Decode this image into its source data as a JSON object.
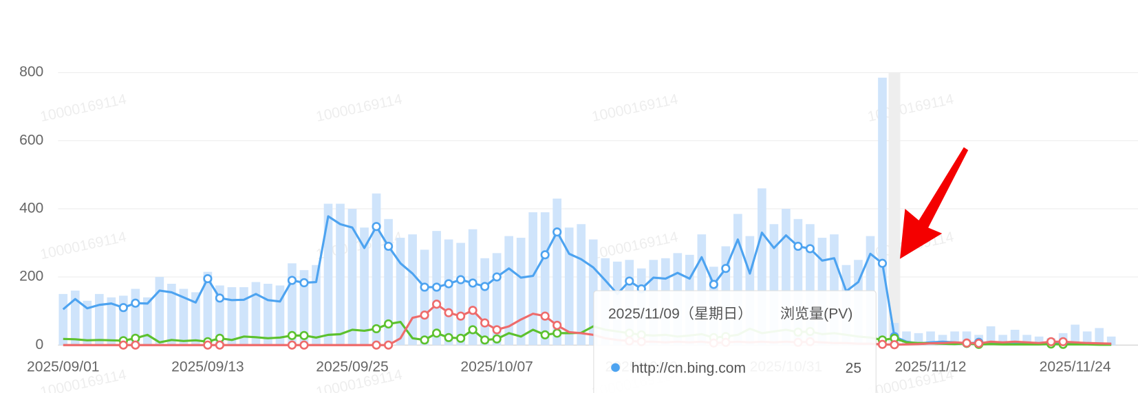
{
  "chart_data": {
    "type": "combo",
    "watermark": "10000169114",
    "categories": [
      "2025/09/01",
      null,
      null,
      null,
      null,
      null,
      null,
      null,
      null,
      null,
      null,
      null,
      "2025/09/13",
      null,
      null,
      null,
      null,
      null,
      null,
      null,
      null,
      null,
      null,
      null,
      "2025/09/25",
      null,
      null,
      null,
      null,
      null,
      null,
      null,
      null,
      null,
      null,
      null,
      "2025/10/07",
      null,
      null,
      null,
      null,
      null,
      null,
      null,
      null,
      null,
      null,
      null,
      "2025/10/19",
      null,
      null,
      null,
      null,
      null,
      null,
      null,
      null,
      null,
      null,
      null,
      "2025/10/31",
      null,
      null,
      null,
      null,
      null,
      null,
      null,
      null,
      null,
      null,
      null,
      "2025/11/12",
      null,
      null,
      null,
      null,
      null,
      null,
      null,
      null,
      null,
      null,
      null,
      "2025/11/24",
      null,
      null,
      null
    ],
    "ylim": [
      0,
      800
    ],
    "yticks": [
      0,
      200,
      400,
      600,
      800
    ],
    "grid": true,
    "marker_indices": [
      5,
      6,
      12,
      13,
      19,
      20,
      26,
      27,
      30,
      31,
      32,
      33,
      34,
      35,
      36,
      40,
      41,
      47,
      48,
      54,
      55,
      61,
      62,
      68,
      69,
      75,
      76,
      82,
      83
    ],
    "series": [
      {
        "type": "bar",
        "color": "#cfe4fb",
        "values": [
          150,
          160,
          130,
          150,
          140,
          145,
          165,
          140,
          200,
          180,
          165,
          155,
          215,
          175,
          170,
          170,
          185,
          180,
          175,
          240,
          220,
          235,
          415,
          415,
          400,
          345,
          445,
          370,
          315,
          325,
          280,
          335,
          310,
          300,
          340,
          255,
          270,
          320,
          315,
          390,
          390,
          430,
          345,
          355,
          310,
          255,
          245,
          250,
          225,
          250,
          255,
          270,
          265,
          325,
          230,
          290,
          385,
          320,
          460,
          355,
          400,
          370,
          355,
          315,
          325,
          235,
          250,
          320,
          785,
          65,
          40,
          35,
          40,
          30,
          40,
          40,
          30,
          55,
          30,
          45,
          30,
          25,
          20,
          35,
          60,
          40,
          50,
          25
        ]
      },
      {
        "type": "line",
        "name": "http://cn.bing.com",
        "color": "#4da3f0",
        "values": [
          105,
          135,
          108,
          118,
          122,
          110,
          123,
          122,
          160,
          155,
          140,
          125,
          195,
          138,
          132,
          133,
          150,
          132,
          128,
          190,
          183,
          185,
          378,
          355,
          345,
          285,
          348,
          290,
          240,
          210,
          170,
          170,
          180,
          192,
          182,
          172,
          200,
          225,
          198,
          203,
          265,
          332,
          268,
          252,
          228,
          190,
          150,
          188,
          165,
          198,
          195,
          212,
          195,
          258,
          178,
          225,
          310,
          210,
          330,
          285,
          322,
          290,
          283,
          248,
          255,
          158,
          185,
          268,
          240,
          25,
          10,
          5,
          8,
          10,
          8,
          5,
          8,
          6,
          5,
          4,
          5,
          4,
          5,
          6,
          4,
          5,
          3,
          3
        ]
      },
      {
        "type": "line",
        "color": "#5cc12e",
        "values": [
          18,
          17,
          14,
          15,
          14,
          13,
          20,
          30,
          8,
          15,
          12,
          14,
          10,
          20,
          15,
          25,
          23,
          20,
          22,
          28,
          28,
          22,
          30,
          32,
          45,
          42,
          48,
          62,
          68,
          20,
          15,
          35,
          22,
          20,
          45,
          15,
          18,
          35,
          25,
          45,
          30,
          35,
          35,
          36,
          55,
          45,
          40,
          35,
          30,
          28,
          30,
          25,
          28,
          32,
          22,
          25,
          30,
          48,
          35,
          40,
          45,
          38,
          40,
          32,
          35,
          30,
          25,
          22,
          15,
          20,
          8,
          6,
          5,
          4,
          3,
          5,
          2,
          3,
          2,
          2,
          2,
          2,
          3,
          2,
          2,
          2,
          1,
          1
        ]
      },
      {
        "type": "line",
        "color": "#ee6b6b",
        "values": [
          0,
          0,
          0,
          0,
          0,
          0,
          0,
          0,
          0,
          0,
          0,
          0,
          0,
          0,
          0,
          0,
          0,
          0,
          0,
          0,
          0,
          0,
          0,
          0,
          0,
          0,
          0,
          0,
          20,
          80,
          88,
          120,
          95,
          85,
          102,
          65,
          45,
          55,
          75,
          92,
          85,
          58,
          38,
          35,
          30,
          20,
          15,
          12,
          10,
          10,
          8,
          10,
          8,
          10,
          6,
          8,
          10,
          8,
          10,
          8,
          10,
          8,
          10,
          8,
          6,
          6,
          4,
          4,
          2,
          1,
          2,
          3,
          5,
          6,
          8,
          6,
          5,
          10,
          8,
          10,
          8,
          6,
          10,
          10,
          8,
          6,
          5,
          4
        ]
      }
    ],
    "tooltip": {
      "title": "2025/11/09（星期日）",
      "metric": "浏览量(PV)"
    }
  }
}
